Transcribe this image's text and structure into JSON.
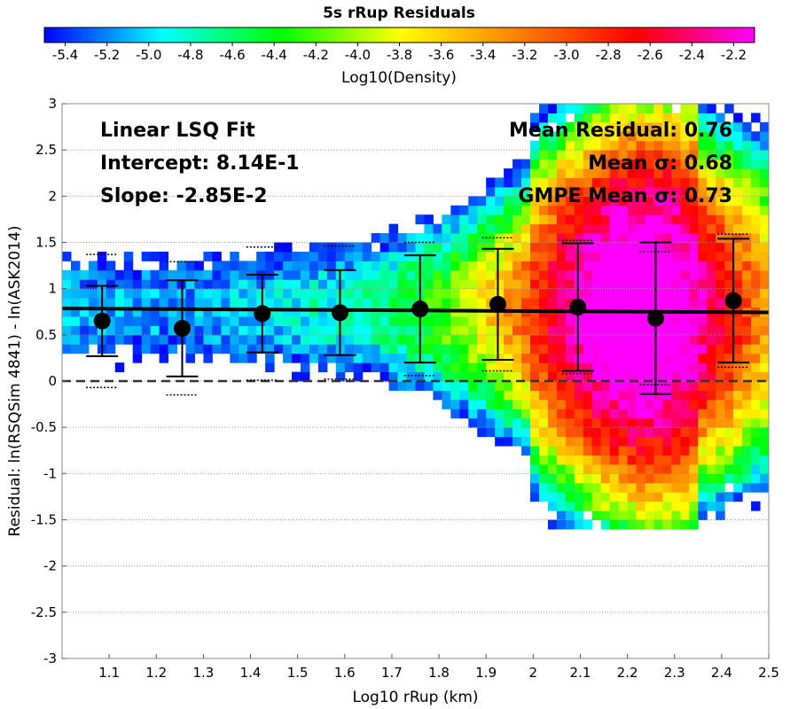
{
  "chart_data": {
    "type": "heatmap",
    "title": "5s rRup Residuals",
    "xlabel": "Log10 rRup (km)",
    "ylabel": "Residual: ln(RSQSim 4841) - ln(ASK2014)",
    "xlim": [
      1.0,
      2.5
    ],
    "ylim": [
      -3,
      3
    ],
    "x_ticks": [
      "1.1",
      "1.2",
      "1.3",
      "1.4",
      "1.5",
      "1.6",
      "1.7",
      "1.8",
      "1.9",
      "2",
      "2.1",
      "2.2",
      "2.3",
      "2.4",
      "2.5"
    ],
    "y_ticks": [
      "-3",
      "-2.5",
      "-2",
      "-1.5",
      "-1",
      "-0.5",
      "0",
      "0.5",
      "1",
      "1.5",
      "2",
      "2.5",
      "3"
    ],
    "grid": true,
    "colorbar": {
      "label": "Log10(Density)",
      "range": [
        -5.5,
        -2.1
      ],
      "ticks": [
        "-5.4",
        "-5.2",
        "-5.0",
        "-4.8",
        "-4.6",
        "-4.4",
        "-4.2",
        "-4.0",
        "-3.8",
        "-3.6",
        "-3.4",
        "-3.2",
        "-3.0",
        "-2.8",
        "-2.6",
        "-2.4",
        "-2.2"
      ],
      "colors": [
        "#0000ff",
        "#00ffff",
        "#00ff00",
        "#ffff00",
        "#ff8000",
        "#ff0000",
        "#ff00ff"
      ]
    },
    "fit_line": {
      "intercept": 0.814,
      "slope": -0.0285
    },
    "zero_line": 0,
    "annotations_left": [
      "Linear LSQ Fit",
      "Intercept: 8.14E-1",
      "Slope: -2.85E-2"
    ],
    "annotations_right": [
      "Mean Residual: 0.76",
      "Mean σ: 0.68",
      "GMPE Mean σ: 0.73"
    ],
    "bins": [
      {
        "x": 1.085,
        "mean": 0.65,
        "sd": 0.38,
        "gmpe_sd": 0.72
      },
      {
        "x": 1.255,
        "mean": 0.57,
        "sd": 0.52,
        "gmpe_sd": 0.72
      },
      {
        "x": 1.425,
        "mean": 0.73,
        "sd": 0.42,
        "gmpe_sd": 0.72
      },
      {
        "x": 1.59,
        "mean": 0.74,
        "sd": 0.46,
        "gmpe_sd": 0.72
      },
      {
        "x": 1.76,
        "mean": 0.78,
        "sd": 0.58,
        "gmpe_sd": 0.72
      },
      {
        "x": 1.925,
        "mean": 0.83,
        "sd": 0.6,
        "gmpe_sd": 0.72
      },
      {
        "x": 2.095,
        "mean": 0.8,
        "sd": 0.69,
        "gmpe_sd": 0.72
      },
      {
        "x": 2.26,
        "mean": 0.68,
        "sd": 0.82,
        "gmpe_sd": 0.72
      },
      {
        "x": 2.425,
        "mean": 0.87,
        "sd": 0.67,
        "gmpe_sd": 0.72
      }
    ]
  }
}
